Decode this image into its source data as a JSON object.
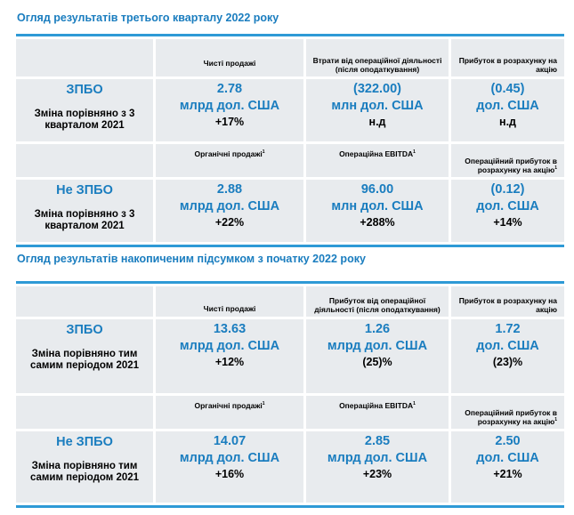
{
  "q3": {
    "title": "Огляд результатів третього кварталу 2022 року",
    "gaap_headers": [
      "Чисті продажі",
      "Втрати від операційної діяльності (після оподаткування)",
      "Прибуток в розрахунку на акцію"
    ],
    "gaap_label": "ЗПБО",
    "gaap_sub": "Зміна порівняно з 3 кварталом 2021",
    "gaap_values": [
      {
        "value": "2.78",
        "unit": "млрд дол. США",
        "change": "+17%"
      },
      {
        "value": "(322.00)",
        "unit": "млн дол. США",
        "change": "н.д"
      },
      {
        "value": "(0.45)",
        "unit": "дол. США",
        "change": "н.д"
      }
    ],
    "non_headers": [
      "Органічні продажі",
      "Операційна EBITDA",
      "Операційний прибуток в розрахунку на акцію"
    ],
    "non_label": "Не ЗПБО",
    "non_sub": "Зміна порівняно з 3 кварталом 2021",
    "non_values": [
      {
        "value": "2.88",
        "unit": "млрд дол. США",
        "change": "+22%"
      },
      {
        "value": "96.00",
        "unit": "млн дол. США",
        "change": "+288%"
      },
      {
        "value": "(0.12)",
        "unit": "дол. США",
        "change": "+14%"
      }
    ]
  },
  "ytd": {
    "title": "Огляд результатів накопиченим підсумком з початку 2022 року",
    "gaap_headers": [
      "Чисті продажі",
      "Прибуток від операційної діяльності (після оподаткування)",
      "Прибуток в розрахунку на акцію"
    ],
    "gaap_label": "ЗПБО",
    "gaap_sub": "Зміна порівняно тим самим періодом 2021",
    "gaap_values": [
      {
        "value": "13.63",
        "unit": "млрд дол. США",
        "change": "+12%"
      },
      {
        "value": "1.26",
        "unit": "млрд дол. США",
        "change": "(25)%"
      },
      {
        "value": "1.72",
        "unit": "дол. США",
        "change": "(23)%"
      }
    ],
    "non_headers": [
      "Органічні продажі",
      "Операційна EBITDA",
      "Операційний прибуток в розрахунку на акцію"
    ],
    "non_label": "Не ЗПБО",
    "non_sub": "Зміна порівняно тим самим періодом 2021",
    "non_values": [
      {
        "value": "14.07",
        "unit": "млрд дол. США",
        "change": "+16%"
      },
      {
        "value": "2.85",
        "unit": "млрд дол. США",
        "change": "+23%"
      },
      {
        "value": "2.50",
        "unit": "дол. США",
        "change": "+21%"
      }
    ]
  },
  "footnote_marker": "1"
}
